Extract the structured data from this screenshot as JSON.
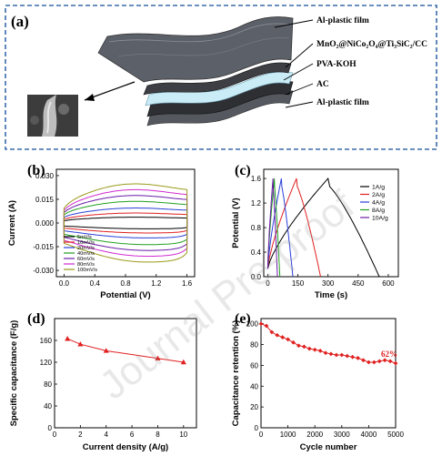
{
  "panel_a": {
    "label": "(a)",
    "layers": [
      "Al-plastic film",
      "MnO₂@NiCo₂O₄@Ti₃SiC₂/CC",
      "PVA-KOH",
      "AC",
      "Al-plastic film"
    ],
    "colors": {
      "frame": "#3a6aa8",
      "film": "#5c6068",
      "electrode": "#2e2f33",
      "electrolyte": "#c9ecf6"
    }
  },
  "watermark": "Journal Pre-proof",
  "chart_data": [
    {
      "panel": "(b)",
      "type": "line",
      "title": "",
      "xlabel": "Potential (V)",
      "ylabel": "Current (A)",
      "xlim": [
        -0.1,
        1.7
      ],
      "ylim": [
        -0.034,
        0.034
      ],
      "xticks": [
        "0.0",
        "0.4",
        "0.8",
        "1.2",
        "1.6"
      ],
      "yticks": [
        "0.030",
        "0.015",
        "0.000",
        "-0.015",
        "-0.030"
      ],
      "legend_position": "bottom-left",
      "series": [
        {
          "name": "5mV/s",
          "color": "#000000",
          "amplitude": 0.0035
        },
        {
          "name": "10mV/s",
          "color": "#e02020",
          "amplitude": 0.006
        },
        {
          "name": "20mV/s",
          "color": "#2a3fd8",
          "amplitude": 0.009
        },
        {
          "name": "40mV/s",
          "color": "#20a020",
          "amplitude": 0.013
        },
        {
          "name": "60mV/s",
          "color": "#6a1aa8",
          "amplitude": 0.0165
        },
        {
          "name": "80mV/s",
          "color": "#d02ad0",
          "amplitude": 0.02
        },
        {
          "name": "100mV/s",
          "color": "#9a9a1a",
          "amplitude": 0.0235
        }
      ]
    },
    {
      "panel": "(c)",
      "type": "line",
      "title": "",
      "xlabel": "Time (s)",
      "ylabel": "Potential (V)",
      "xlim": [
        -20,
        650
      ],
      "ylim": [
        0,
        1.75
      ],
      "xticks": [
        "0",
        "150",
        "300",
        "450",
        "600"
      ],
      "yticks": [
        "0.0",
        "0.4",
        "0.8",
        "1.2",
        "1.6"
      ],
      "legend_position": "top-right",
      "series": [
        {
          "name": "1A/g",
          "color": "#000000",
          "charge_end": 300,
          "discharge_end": 555
        },
        {
          "name": "2A/g",
          "color": "#e02020",
          "charge_end": 143,
          "discharge_end": 263
        },
        {
          "name": "4A/g",
          "color": "#2a3fd8",
          "charge_end": 68,
          "discharge_end": 125
        },
        {
          "name": "8A/g",
          "color": "#20a020",
          "charge_end": 33,
          "discharge_end": 60
        },
        {
          "name": "10A/g",
          "color": "#6a1aa8",
          "charge_end": 26,
          "discharge_end": 48
        }
      ]
    },
    {
      "panel": "(d)",
      "type": "line",
      "title": "",
      "xlabel": "Current density (A/g)",
      "ylabel": "Specific capacitance (F/g)",
      "xlim": [
        0,
        11
      ],
      "ylim": [
        0,
        200
      ],
      "xticks": [
        "0",
        "2",
        "4",
        "6",
        "8",
        "10"
      ],
      "yticks": [
        "0",
        "40",
        "80",
        "120",
        "160"
      ],
      "color": "#e02020",
      "x": [
        1,
        2,
        4,
        8,
        10
      ],
      "y": [
        163,
        153,
        141,
        127,
        120
      ]
    },
    {
      "panel": "(e)",
      "type": "line",
      "title": "",
      "xlabel": "Cycle number",
      "ylabel": "Capacitance retention (%)",
      "xlim": [
        0,
        5000
      ],
      "ylim": [
        0,
        105
      ],
      "xticks": [
        "0",
        "1000",
        "2000",
        "3000",
        "4000",
        "5000"
      ],
      "yticks": [
        "0",
        "20",
        "40",
        "60",
        "80",
        "100"
      ],
      "color": "#e02020",
      "annotation": "62%",
      "x": [
        0,
        200,
        400,
        600,
        800,
        1000,
        1200,
        1400,
        1600,
        1800,
        2000,
        2200,
        2400,
        2600,
        2800,
        3000,
        3200,
        3400,
        3600,
        3800,
        4000,
        4200,
        4400,
        4600,
        4800,
        5000
      ],
      "y": [
        100,
        98,
        92,
        89,
        87,
        85,
        82,
        79,
        78,
        76,
        75,
        74,
        72,
        71,
        70,
        70,
        69,
        68,
        67,
        65,
        63,
        63,
        64,
        65,
        64,
        62
      ]
    }
  ]
}
